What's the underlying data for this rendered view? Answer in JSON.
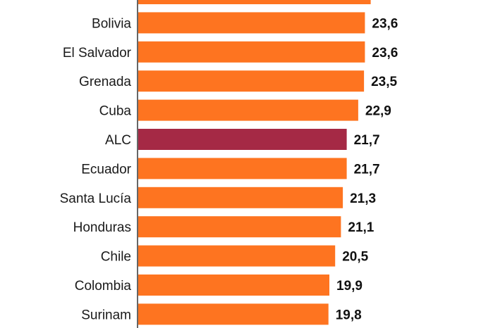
{
  "chart_data": {
    "type": "bar",
    "orientation": "horizontal",
    "categories": [
      "",
      "Bolivia",
      "El Salvador",
      "Grenada",
      "Cuba",
      "ALC",
      "Ecuador",
      "Santa Lucía",
      "Honduras",
      "Chile",
      "Colombia",
      "Surinam"
    ],
    "values": [
      24.2,
      23.6,
      23.6,
      23.5,
      22.9,
      21.7,
      21.7,
      21.3,
      21.1,
      20.5,
      19.9,
      19.8
    ],
    "value_labels": [
      "",
      "23,6",
      "23,6",
      "23,5",
      "22,9",
      "21,7",
      "21,7",
      "21,3",
      "21,1",
      "20,5",
      "19,9",
      "19,8"
    ],
    "highlight": "ALC",
    "colors": {
      "bar": "#fe7420",
      "highlight": "#a52945",
      "axis": "#333333"
    },
    "title": "",
    "xlabel": "",
    "ylabel": "",
    "grid": false,
    "legend": "none"
  }
}
